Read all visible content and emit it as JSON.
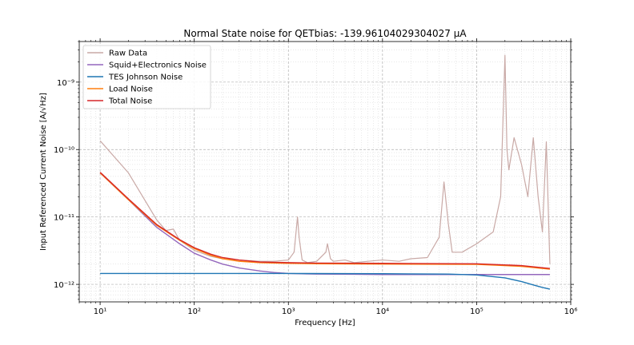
{
  "chart_data": {
    "type": "line",
    "title": "Normal State noise for QETbias: -139.96104029304027 μA",
    "xlabel": "Frequency [Hz]",
    "ylabel": "Input Referenced Current Noise [A/√Hz]",
    "xscale": "log",
    "yscale": "log",
    "xlim": [
      6,
      1000000
    ],
    "ylim": [
      5.5e-13,
      4e-09
    ],
    "grid": true,
    "legend_position": "upper-left",
    "x_ticks": [
      {
        "value": 10,
        "label": "10¹"
      },
      {
        "value": 100,
        "label": "10²"
      },
      {
        "value": 1000,
        "label": "10³"
      },
      {
        "value": 10000,
        "label": "10⁴"
      },
      {
        "value": 100000,
        "label": "10⁵"
      },
      {
        "value": 1000000,
        "label": "10⁶"
      }
    ],
    "y_ticks": [
      {
        "value": 1e-12,
        "label": "10⁻¹²"
      },
      {
        "value": 1e-11,
        "label": "10⁻¹¹"
      },
      {
        "value": 1e-10,
        "label": "10⁻¹⁰"
      },
      {
        "value": 1e-09,
        "label": "10⁻⁹"
      }
    ],
    "series": [
      {
        "name": "Raw Data",
        "color": "#c9a9a6",
        "x": [
          10,
          20,
          40,
          50,
          60,
          70,
          100,
          150,
          200,
          300,
          500,
          700,
          1000,
          1150,
          1250,
          1300,
          1400,
          1600,
          2000,
          2500,
          2600,
          2800,
          3000,
          4000,
          5000,
          7000,
          10000,
          15000,
          20000,
          30000,
          40000,
          45000,
          50000,
          55000,
          70000,
          100000,
          150000,
          180000,
          200000,
          210000,
          220000,
          250000,
          300000,
          350000,
          400000,
          450000,
          500000,
          550000,
          600000
        ],
        "y": [
          1.35e-10,
          4.5e-11,
          9e-12,
          6.3e-12,
          6.6e-12,
          4.5e-12,
          3.2e-12,
          2.6e-12,
          2.4e-12,
          2.3e-12,
          2.2e-12,
          2.2e-12,
          2.3e-12,
          3e-12,
          1e-11,
          5e-12,
          2.3e-12,
          2.1e-12,
          2.2e-12,
          3e-12,
          4e-12,
          2.4e-12,
          2.2e-12,
          2.3e-12,
          2.1e-12,
          2.2e-12,
          2.3e-12,
          2.2e-12,
          2.4e-12,
          2.5e-12,
          5e-12,
          3.3e-11,
          8e-12,
          3e-12,
          3e-12,
          4e-12,
          6e-12,
          2e-11,
          2.5e-09,
          1e-10,
          5e-11,
          1.5e-10,
          6e-11,
          2e-11,
          1.5e-10,
          2e-11,
          6e-12,
          1.3e-10,
          2e-12
        ]
      },
      {
        "name": "Squid+Electronics Noise",
        "color": "#9467bd",
        "x": [
          10,
          20,
          40,
          70,
          100,
          150,
          200,
          300,
          500,
          700,
          1000,
          2000,
          5000,
          10000,
          100000,
          600000
        ],
        "y": [
          4.5e-11,
          1.8e-11,
          7e-12,
          4e-12,
          2.9e-12,
          2.3e-12,
          2e-12,
          1.75e-12,
          1.58e-12,
          1.5e-12,
          1.45e-12,
          1.42e-12,
          1.41e-12,
          1.4e-12,
          1.4e-12,
          1.4e-12
        ]
      },
      {
        "name": "TES Johnson Noise",
        "color": "#1f77b4",
        "x": [
          10,
          1000,
          10000,
          50000,
          100000,
          200000,
          300000,
          400000,
          500000,
          600000
        ],
        "y": [
          1.45e-12,
          1.45e-12,
          1.44e-12,
          1.42e-12,
          1.38e-12,
          1.25e-12,
          1.1e-12,
          9.8e-13,
          9e-13,
          8.5e-13
        ]
      },
      {
        "name": "Load Noise",
        "color": "#ff7f0e",
        "x": [
          10,
          20,
          40,
          70,
          100,
          150,
          200,
          300,
          500,
          1000,
          2000,
          10000,
          100000,
          300000,
          600000
        ],
        "y": [
          4.5e-11,
          1.8e-11,
          7.5e-12,
          4.5e-12,
          3.4e-12,
          2.7e-12,
          2.4e-12,
          2.2e-12,
          2.1e-12,
          2.05e-12,
          2.02e-12,
          2e-12,
          1.98e-12,
          1.85e-12,
          1.68e-12
        ]
      },
      {
        "name": "Total Noise",
        "color": "#d62728",
        "x": [
          10,
          20,
          40,
          70,
          100,
          150,
          200,
          300,
          500,
          1000,
          2000,
          10000,
          100000,
          300000,
          600000
        ],
        "y": [
          4.6e-11,
          1.85e-11,
          7.7e-12,
          4.6e-12,
          3.5e-12,
          2.8e-12,
          2.5e-12,
          2.3e-12,
          2.15e-12,
          2.1e-12,
          2.07e-12,
          2.05e-12,
          2.02e-12,
          1.9e-12,
          1.72e-12
        ]
      }
    ]
  }
}
